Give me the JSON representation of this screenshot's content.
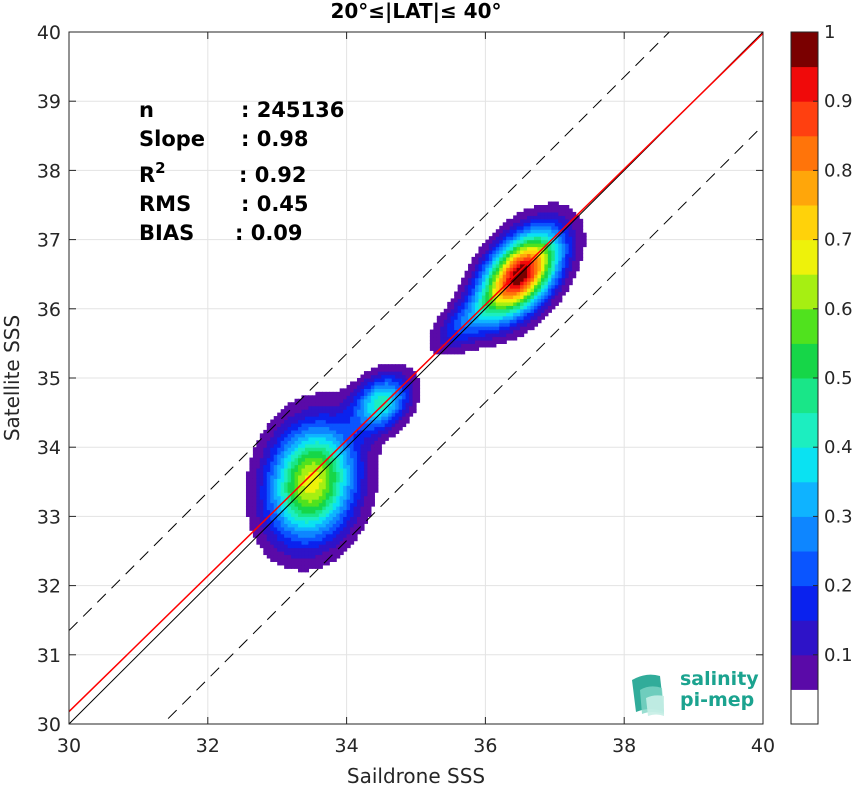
{
  "chart_data": {
    "type": "heatmap",
    "title": "20°≤|LAT|≤ 40°",
    "xlabel": "Saildrone SSS",
    "ylabel": "Satellite SSS",
    "xlim": [
      30,
      40
    ],
    "ylim": [
      30,
      40
    ],
    "xticks": [
      30,
      32,
      34,
      36,
      38,
      40
    ],
    "yticks": [
      30,
      31,
      32,
      33,
      34,
      35,
      36,
      37,
      38,
      39,
      40
    ],
    "grid": true,
    "stats": [
      {
        "label": "n",
        "value": ": 245136"
      },
      {
        "label": "Slope",
        "value": ": 0.98"
      },
      {
        "label": "R",
        "sup": "2",
        "value": ": 0.92"
      },
      {
        "label": "RMS",
        "value": ": 0.45"
      },
      {
        "label": "BIAS",
        "value": ": 0.09"
      }
    ],
    "reference_lines": {
      "identity": {
        "slope": 1,
        "intercept": 0,
        "color": "#000000"
      },
      "regression": {
        "slope": 0.98,
        "intercept": 0.78,
        "color": "#ff0000"
      },
      "dashed_offsets": [
        1.35,
        -1.35
      ]
    },
    "clusters": [
      {
        "x": 33.5,
        "y": 33.5,
        "peak": 0.68,
        "sx": 0.42,
        "sy": 0.56,
        "rho": 0.15
      },
      {
        "x": 34.5,
        "y": 34.65,
        "peak": 0.42,
        "sx": 0.27,
        "sy": 0.27,
        "rho": 0.3
      },
      {
        "x": 36.5,
        "y": 36.5,
        "peak": 1.0,
        "sx": 0.38,
        "sy": 0.42,
        "rho": 0.5
      },
      {
        "x": 35.7,
        "y": 35.8,
        "peak": 0.18,
        "sx": 0.32,
        "sy": 0.28,
        "rho": 0.6
      }
    ],
    "colorbar": {
      "range": [
        0,
        1
      ],
      "ticks": [
        "0.1",
        "0.2",
        "0.3",
        "0.4",
        "0.5",
        "0.6",
        "0.7",
        "0.8",
        "0.9",
        "1"
      ],
      "levels": [
        0.05,
        0.1,
        0.15,
        0.2,
        0.25,
        0.3,
        0.35,
        0.4,
        0.45,
        0.5,
        0.55,
        0.6,
        0.65,
        0.7,
        0.75,
        0.8,
        0.85,
        0.9,
        0.95
      ],
      "colors": [
        "#ffffff",
        "#5a0aa8",
        "#2e13c8",
        "#0a22ee",
        "#0a55ff",
        "#0e86ff",
        "#0fb3ff",
        "#0ae2f2",
        "#1ceec0",
        "#19e688",
        "#16d648",
        "#50e21e",
        "#a6ef12",
        "#eef20a",
        "#ffd20a",
        "#ffa60a",
        "#ff740a",
        "#ff4010",
        "#f00a0a",
        "#7a0000"
      ]
    }
  },
  "logo": {
    "line1": "salinity",
    "line2": "pi-mep"
  }
}
